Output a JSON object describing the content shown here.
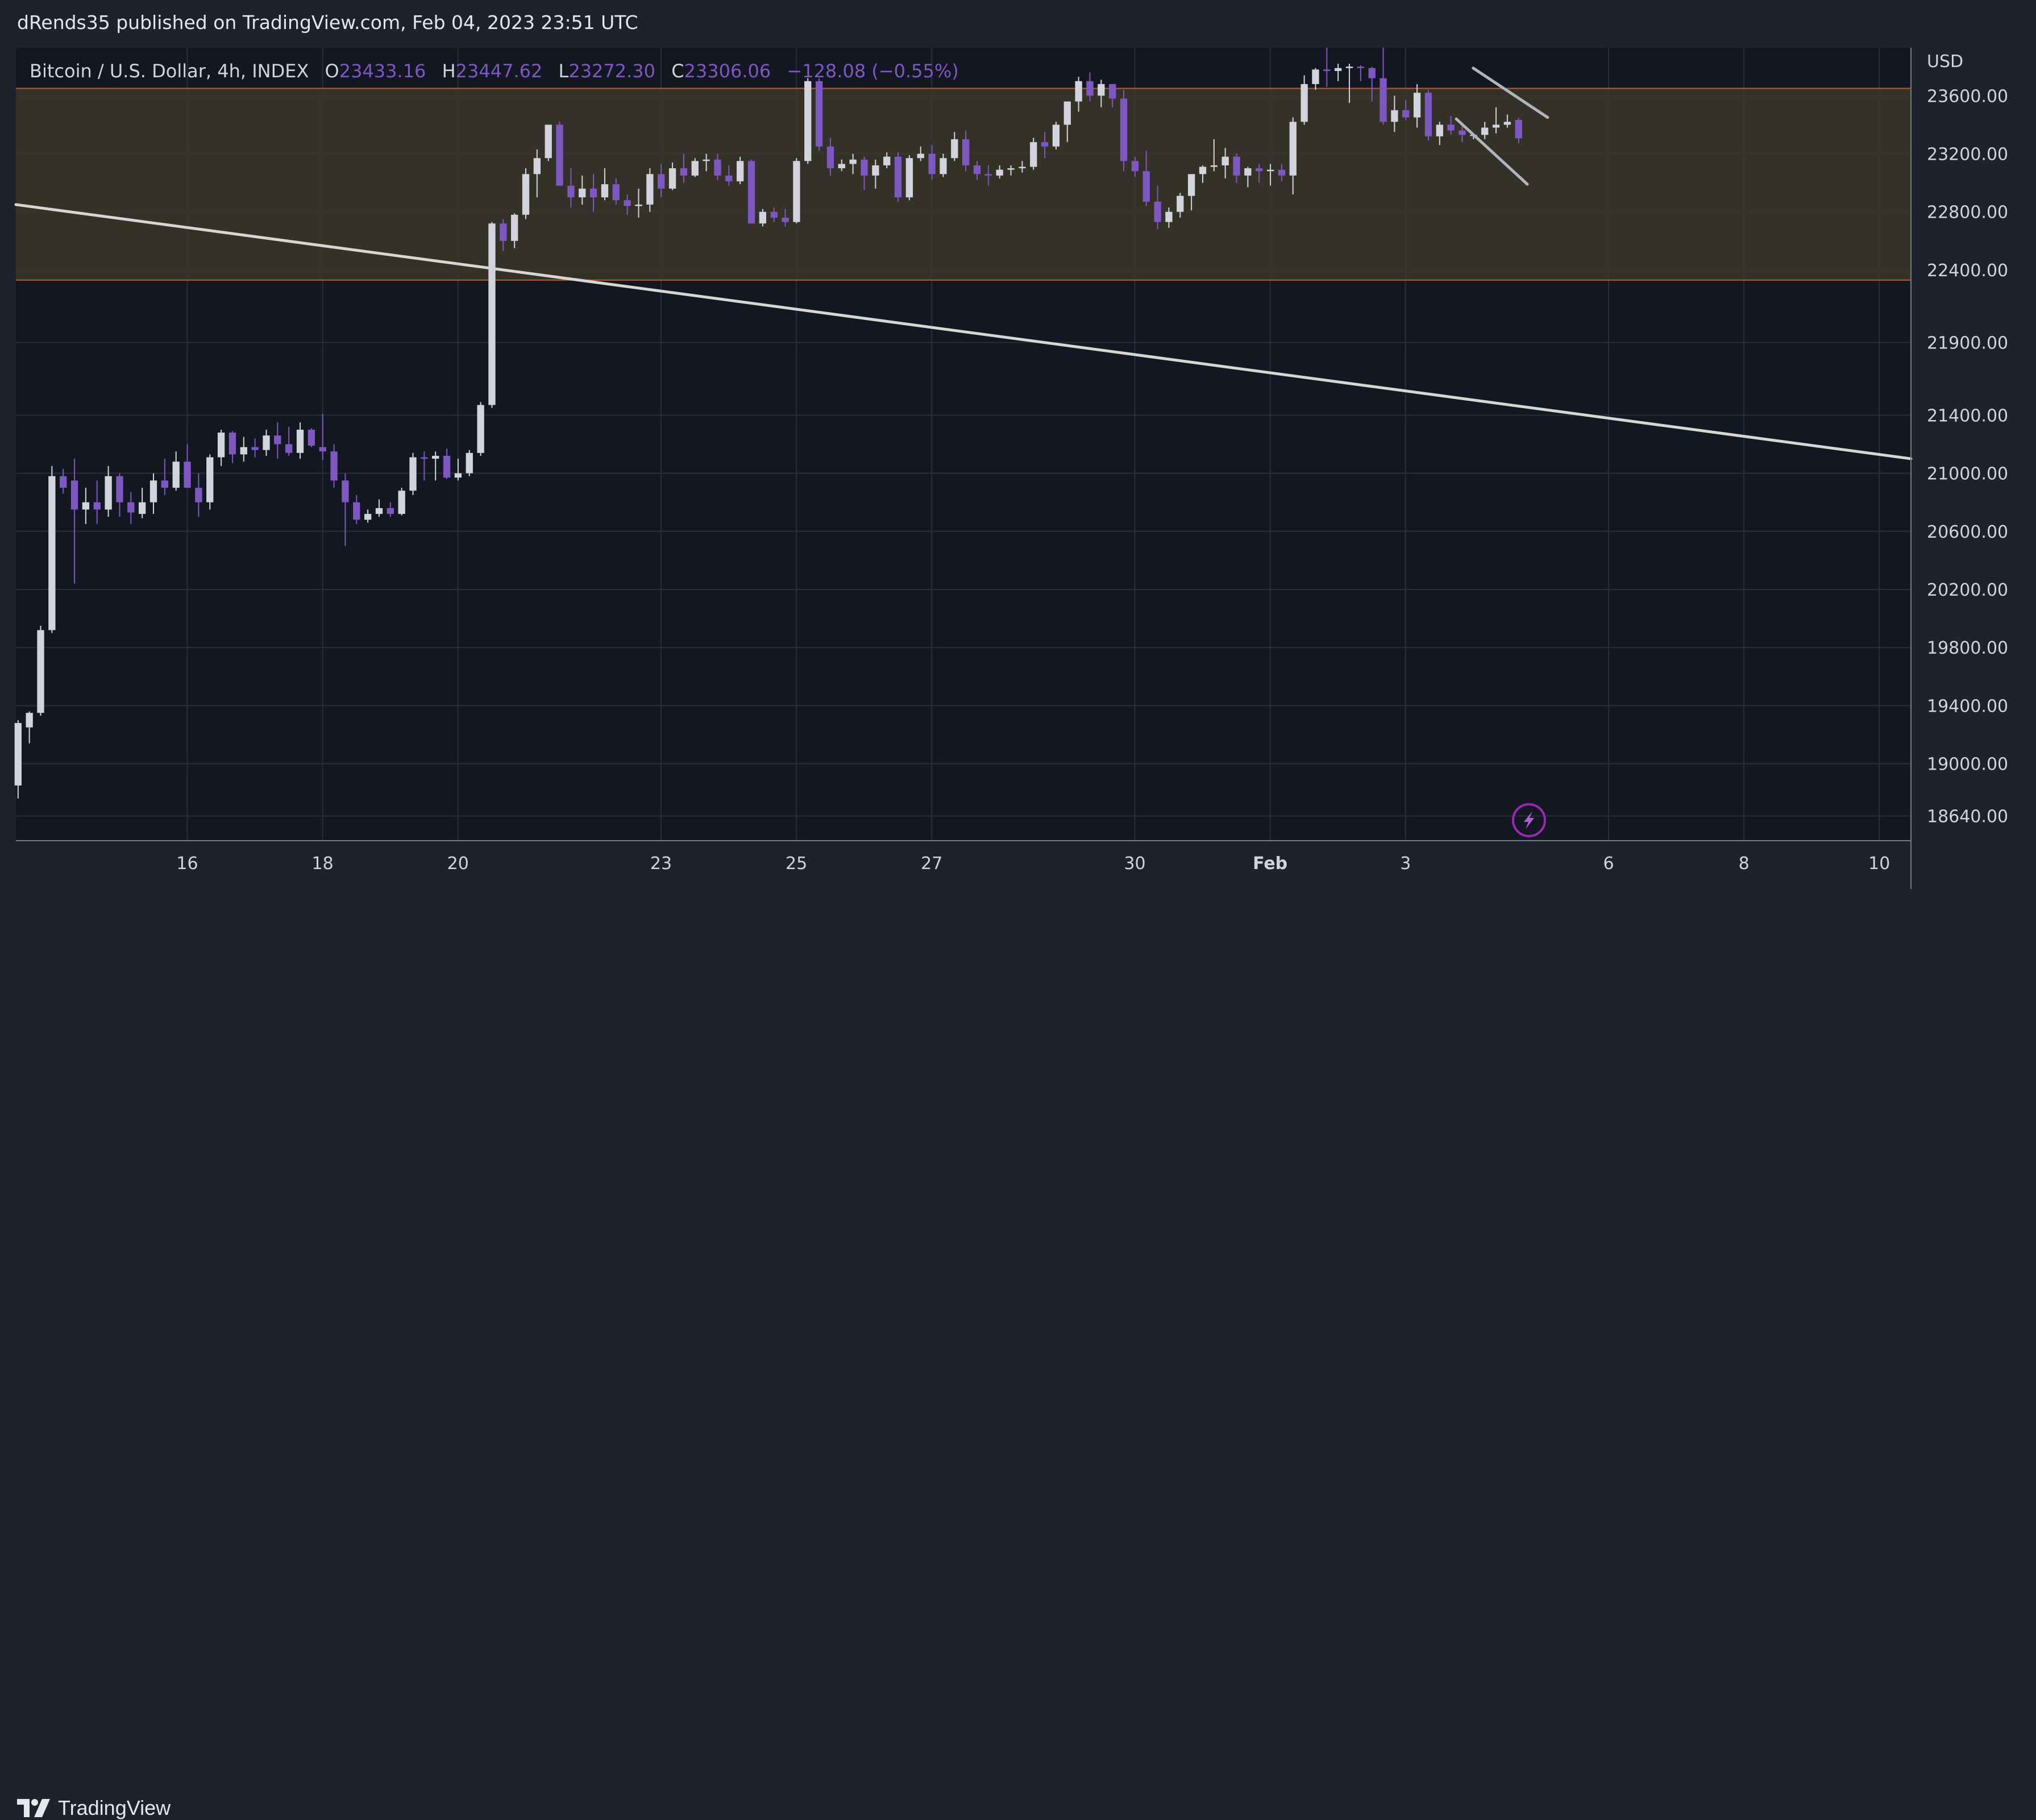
{
  "publisher_line": "dRends35 published on TradingView.com, Feb 04, 2023 23:51 UTC",
  "brand": "TradingView",
  "legend": {
    "symbol": "Bitcoin / U.S. Dollar, 4h, INDEX",
    "o_label": "O",
    "o_value": "23433.16",
    "h_label": "H",
    "h_value": "23447.62",
    "l_label": "L",
    "l_value": "23272.30",
    "c_label": "C",
    "c_value": "23306.06",
    "change": "−128.08 (−0.55%)"
  },
  "currency": "USD",
  "colors": {
    "background": "#131722",
    "frame": "#1e222d",
    "grid": "#2a2e39",
    "up_candle": "#d1d4dc",
    "down_candle": "#7e57c2",
    "legend_values": "#7e57c2",
    "zone_fill": "#3b3627",
    "zone_border": "#c05a2a",
    "trendline": "#d8d6d4",
    "channel": "#b2b5be",
    "text": "#d1d4dc"
  },
  "chart_data": {
    "type": "candlestick",
    "title": "Bitcoin / U.S. Dollar, 4h, INDEX",
    "ylabel": "USD",
    "ylim": [
      18470,
      23930
    ],
    "y_ticks": [
      {
        "value": 23600,
        "label": "23600.00"
      },
      {
        "value": 23200,
        "label": "23200.00"
      },
      {
        "value": 22800,
        "label": "22800.00"
      },
      {
        "value": 22400,
        "label": "22400.00"
      },
      {
        "value": 21900,
        "label": "21900.00"
      },
      {
        "value": 21400,
        "label": "21400.00"
      },
      {
        "value": 21000,
        "label": "21000.00"
      },
      {
        "value": 20600,
        "label": "20600.00"
      },
      {
        "value": 20200,
        "label": "20200.00"
      },
      {
        "value": 19800,
        "label": "19800.00"
      },
      {
        "value": 19400,
        "label": "19400.00"
      },
      {
        "value": 19000,
        "label": "19000.00"
      },
      {
        "value": 18640,
        "label": "18640.00"
      }
    ],
    "x_ticks": [
      {
        "day": 16,
        "label": "16"
      },
      {
        "day": 18,
        "label": "18"
      },
      {
        "day": 20,
        "label": "20"
      },
      {
        "day": 23,
        "label": "23"
      },
      {
        "day": 25,
        "label": "25"
      },
      {
        "day": 27,
        "label": "27"
      },
      {
        "day": 30,
        "label": "30"
      },
      {
        "day": 32,
        "label": "Feb"
      },
      {
        "day": 34,
        "label": "3"
      },
      {
        "day": 37,
        "label": "6"
      },
      {
        "day": 39,
        "label": "8"
      },
      {
        "day": 41,
        "label": "10"
      }
    ],
    "x_range_days": [
      13.468,
      41.468
    ],
    "candle_start_day": 13.5,
    "candle_step_days": 0.1667,
    "candles": [
      [
        18850,
        19300,
        18760,
        19280
      ],
      [
        19250,
        19360,
        19140,
        19350
      ],
      [
        19350,
        19950,
        19330,
        19920
      ],
      [
        19920,
        21050,
        19900,
        20980
      ],
      [
        20980,
        21030,
        20860,
        20900
      ],
      [
        20950,
        21100,
        20240,
        20750
      ],
      [
        20750,
        20900,
        20650,
        20800
      ],
      [
        20800,
        20950,
        20650,
        20750
      ],
      [
        20750,
        21050,
        20700,
        20980
      ],
      [
        20980,
        21000,
        20700,
        20800
      ],
      [
        20800,
        20870,
        20650,
        20730
      ],
      [
        20720,
        20900,
        20690,
        20800
      ],
      [
        20800,
        21000,
        20720,
        20950
      ],
      [
        20950,
        21100,
        20850,
        20900
      ],
      [
        20900,
        21150,
        20880,
        21080
      ],
      [
        21080,
        21200,
        20900,
        20900
      ],
      [
        20900,
        21000,
        20700,
        20800
      ],
      [
        20800,
        21130,
        20750,
        21110
      ],
      [
        21110,
        21300,
        21050,
        21280
      ],
      [
        21280,
        21290,
        21070,
        21130
      ],
      [
        21130,
        21250,
        21080,
        21180
      ],
      [
        21180,
        21240,
        21110,
        21160
      ],
      [
        21160,
        21300,
        21120,
        21260
      ],
      [
        21260,
        21350,
        21100,
        21200
      ],
      [
        21200,
        21320,
        21120,
        21140
      ],
      [
        21140,
        21350,
        21100,
        21300
      ],
      [
        21300,
        21310,
        21180,
        21190
      ],
      [
        21180,
        21410,
        21090,
        21150
      ],
      [
        21150,
        21200,
        20900,
        20950
      ],
      [
        20950,
        21000,
        20500,
        20800
      ],
      [
        20800,
        20850,
        20650,
        20680
      ],
      [
        20680,
        20750,
        20660,
        20720
      ],
      [
        20720,
        20820,
        20700,
        20760
      ],
      [
        20760,
        20800,
        20700,
        20720
      ],
      [
        20720,
        20900,
        20710,
        20880
      ],
      [
        20880,
        21140,
        20850,
        21110
      ],
      [
        21110,
        21150,
        20950,
        21100
      ],
      [
        21100,
        21150,
        20950,
        21120
      ],
      [
        21120,
        21170,
        20960,
        20970
      ],
      [
        20970,
        21100,
        20950,
        21000
      ],
      [
        21000,
        21160,
        20980,
        21140
      ],
      [
        21140,
        21490,
        21120,
        21470
      ],
      [
        21470,
        22730,
        21450,
        22720
      ],
      [
        22720,
        22750,
        22530,
        22600
      ],
      [
        22600,
        22790,
        22550,
        22780
      ],
      [
        22780,
        23100,
        22750,
        23060
      ],
      [
        23060,
        23230,
        22900,
        23170
      ],
      [
        23170,
        23400,
        23150,
        23400
      ],
      [
        23400,
        23420,
        22980,
        22980
      ],
      [
        22980,
        23100,
        22830,
        22900
      ],
      [
        22900,
        23050,
        22850,
        22960
      ],
      [
        22960,
        23060,
        22800,
        22900
      ],
      [
        22900,
        23100,
        22880,
        22990
      ],
      [
        22990,
        23030,
        22850,
        22880
      ],
      [
        22880,
        22920,
        22780,
        22840
      ],
      [
        22840,
        22960,
        22760,
        22850
      ],
      [
        22850,
        23100,
        22800,
        23060
      ],
      [
        23060,
        23130,
        22900,
        22960
      ],
      [
        22960,
        23140,
        22950,
        23100
      ],
      [
        23100,
        23200,
        23000,
        23050
      ],
      [
        23050,
        23170,
        23040,
        23150
      ],
      [
        23150,
        23200,
        23080,
        23160
      ],
      [
        23160,
        23200,
        23020,
        23050
      ],
      [
        23050,
        23120,
        22980,
        23010
      ],
      [
        23010,
        23180,
        22990,
        23150
      ],
      [
        23150,
        23160,
        22720,
        22720
      ],
      [
        22720,
        22820,
        22700,
        22800
      ],
      [
        22800,
        22830,
        22730,
        22760
      ],
      [
        22760,
        22820,
        22700,
        22730
      ],
      [
        22730,
        23170,
        22720,
        23150
      ],
      [
        23150,
        23720,
        23130,
        23700
      ],
      [
        23700,
        23720,
        23220,
        23250
      ],
      [
        23250,
        23310,
        23050,
        23100
      ],
      [
        23100,
        23160,
        23080,
        23130
      ],
      [
        23130,
        23200,
        23060,
        23160
      ],
      [
        23160,
        23180,
        22950,
        23050
      ],
      [
        23050,
        23160,
        22960,
        23120
      ],
      [
        23120,
        23210,
        23100,
        23180
      ],
      [
        23180,
        23210,
        22870,
        22900
      ],
      [
        22900,
        23190,
        22880,
        23170
      ],
      [
        23170,
        23250,
        23150,
        23200
      ],
      [
        23200,
        23260,
        23020,
        23060
      ],
      [
        23060,
        23200,
        23040,
        23170
      ],
      [
        23170,
        23350,
        23150,
        23300
      ],
      [
        23300,
        23360,
        23080,
        23120
      ],
      [
        23120,
        23150,
        23020,
        23060
      ],
      [
        23060,
        23120,
        22980,
        23050
      ],
      [
        23050,
        23120,
        23030,
        23090
      ],
      [
        23090,
        23120,
        23050,
        23100
      ],
      [
        23100,
        23150,
        23070,
        23110
      ],
      [
        23110,
        23310,
        23090,
        23280
      ],
      [
        23280,
        23350,
        23170,
        23250
      ],
      [
        23250,
        23420,
        23230,
        23400
      ],
      [
        23400,
        23560,
        23280,
        23560
      ],
      [
        23560,
        23730,
        23490,
        23700
      ],
      [
        23700,
        23760,
        23560,
        23600
      ],
      [
        23600,
        23710,
        23520,
        23680
      ],
      [
        23680,
        23680,
        23520,
        23580
      ],
      [
        23580,
        23640,
        23080,
        23150
      ],
      [
        23150,
        23180,
        23040,
        23080
      ],
      [
        23080,
        23220,
        22840,
        22870
      ],
      [
        22870,
        22980,
        22680,
        22730
      ],
      [
        22730,
        22830,
        22690,
        22800
      ],
      [
        22800,
        22930,
        22760,
        22910
      ],
      [
        22910,
        23030,
        22810,
        23060
      ],
      [
        23060,
        23120,
        23000,
        23110
      ],
      [
        23110,
        23300,
        23080,
        23120
      ],
      [
        23120,
        23240,
        23030,
        23180
      ],
      [
        23180,
        23200,
        23000,
        23050
      ],
      [
        23050,
        23110,
        22970,
        23100
      ],
      [
        23100,
        23130,
        23000,
        23080
      ],
      [
        23080,
        23130,
        22980,
        23090
      ],
      [
        23090,
        23130,
        23010,
        23050
      ],
      [
        23050,
        23450,
        22920,
        23420
      ],
      [
        23420,
        23740,
        23400,
        23680
      ],
      [
        23680,
        23790,
        23640,
        23780
      ],
      [
        23780,
        24010,
        23660,
        23770
      ],
      [
        23770,
        23820,
        23700,
        23790
      ],
      [
        23790,
        23820,
        23550,
        23800
      ],
      [
        23800,
        23810,
        23700,
        23790
      ],
      [
        23790,
        23800,
        23560,
        23720
      ],
      [
        23720,
        23950,
        23400,
        23420
      ],
      [
        23420,
        23600,
        23350,
        23500
      ],
      [
        23500,
        23570,
        23430,
        23450
      ],
      [
        23450,
        23680,
        23380,
        23620
      ],
      [
        23620,
        23640,
        23290,
        23320
      ],
      [
        23320,
        23420,
        23260,
        23400
      ],
      [
        23400,
        23460,
        23330,
        23360
      ],
      [
        23360,
        23410,
        23280,
        23330
      ],
      [
        23330,
        23340,
        23300,
        23330
      ],
      [
        23330,
        23420,
        23300,
        23380
      ],
      [
        23380,
        23520,
        23340,
        23400
      ],
      [
        23400,
        23470,
        23380,
        23420
      ],
      [
        23433,
        23448,
        23272,
        23306
      ]
    ],
    "annotations": {
      "range_zone": {
        "low": 22330,
        "high": 23650
      },
      "long_trendline": {
        "start": {
          "day": 13.468,
          "price": 22850
        },
        "end": {
          "day": 41.468,
          "price": 21100
        }
      },
      "channel_upper": {
        "start": {
          "day": 35.0,
          "price": 23790
        },
        "end": {
          "day": 36.1,
          "price": 23450
        }
      },
      "channel_lower": {
        "start": {
          "day": 34.75,
          "price": 23440
        },
        "end": {
          "day": 35.8,
          "price": 22990
        }
      }
    }
  }
}
